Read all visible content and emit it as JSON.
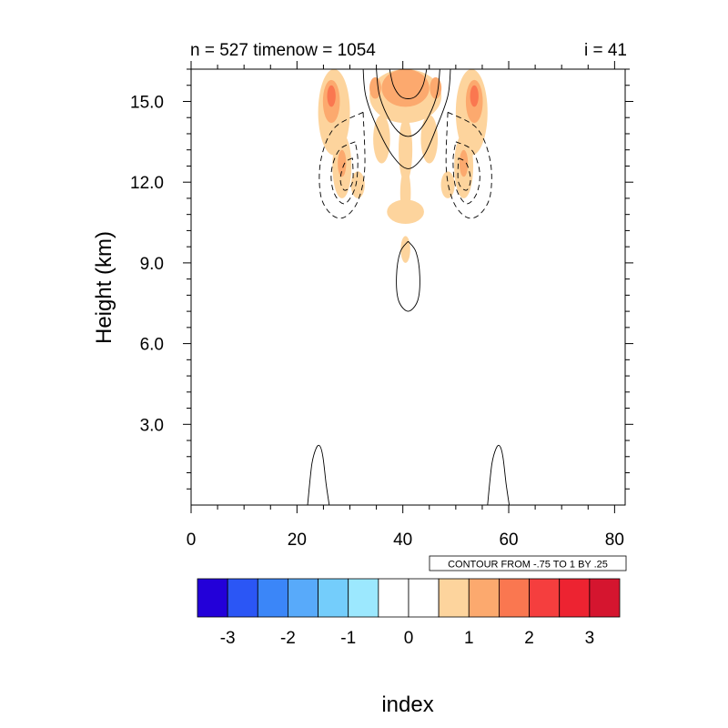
{
  "chart_data": {
    "type": "contour",
    "title_left": "n = 527 timenow = 1054",
    "title_right": "i = 41",
    "ylabel": "Height (km)",
    "xlabel": "",
    "xlim": [
      0,
      82
    ],
    "ylim": [
      0,
      16.2
    ],
    "xticks": [
      {
        "v": 0,
        "label": "0"
      },
      {
        "v": 20,
        "label": "20"
      },
      {
        "v": 40,
        "label": "40"
      },
      {
        "v": 60,
        "label": "60"
      },
      {
        "v": 80,
        "label": "80"
      }
    ],
    "yticks": [
      {
        "v": 3,
        "label": "3.0"
      },
      {
        "v": 6,
        "label": "6.0"
      },
      {
        "v": 9,
        "label": "9.0"
      },
      {
        "v": 12,
        "label": "12.0"
      },
      {
        "v": 15,
        "label": "15.0"
      }
    ],
    "contour_info": "CONTOUR FROM -.75 TO 1 BY .25",
    "colorbar": {
      "colors": [
        "#2300d9",
        "#2b56f5",
        "#3b86f8",
        "#58aafa",
        "#74cdfb",
        "#9ce8fe",
        "#ffffff",
        "#ffffff",
        "#fdd49d",
        "#fca96e",
        "#fa7750",
        "#f53e3e",
        "#ed2331",
        "#d5152f"
      ],
      "labels": [
        {
          "v": -3,
          "label": "-3"
        },
        {
          "v": -2,
          "label": "-2"
        },
        {
          "v": -1,
          "label": "-1"
        },
        {
          "v": 0,
          "label": "0"
        },
        {
          "v": 1,
          "label": "1"
        },
        {
          "v": 2,
          "label": "2"
        },
        {
          "v": 3,
          "label": "3"
        }
      ],
      "title": "index"
    },
    "filled_regions": [
      {
        "level": 1,
        "cx": 27,
        "cy": 14.6,
        "rx": 3.0,
        "ry": 1.6
      },
      {
        "level": 1,
        "cx": 53,
        "cy": 14.6,
        "rx": 3.0,
        "ry": 1.6
      },
      {
        "level": 2,
        "cx": 26.5,
        "cy": 15.0,
        "rx": 1.6,
        "ry": 0.8
      },
      {
        "level": 2,
        "cx": 53.5,
        "cy": 15.0,
        "rx": 1.6,
        "ry": 0.8
      },
      {
        "level": 3,
        "cx": 26.5,
        "cy": 15.2,
        "rx": 0.8,
        "ry": 0.4
      },
      {
        "level": 3,
        "cx": 53.5,
        "cy": 15.2,
        "rx": 0.8,
        "ry": 0.4
      },
      {
        "level": 1,
        "cx": 28.5,
        "cy": 12.6,
        "rx": 1.8,
        "ry": 1.2
      },
      {
        "level": 1,
        "cx": 51.5,
        "cy": 12.6,
        "rx": 1.8,
        "ry": 1.2
      },
      {
        "level": 2,
        "cx": 28.5,
        "cy": 12.7,
        "rx": 0.8,
        "ry": 0.5
      },
      {
        "level": 2,
        "cx": 51.5,
        "cy": 12.7,
        "rx": 0.8,
        "ry": 0.5
      },
      {
        "level": 1,
        "cx": 31.5,
        "cy": 11.9,
        "rx": 1.3,
        "ry": 0.5
      },
      {
        "level": 1,
        "cx": 48.5,
        "cy": 11.9,
        "rx": 1.3,
        "ry": 0.5
      },
      {
        "level": 1,
        "cx": 40.5,
        "cy": 15.2,
        "rx": 6.8,
        "ry": 1.0
      },
      {
        "level": 2,
        "cx": 40.5,
        "cy": 15.5,
        "rx": 4.5,
        "ry": 0.7
      },
      {
        "level": 2,
        "cx": 34.8,
        "cy": 15.5,
        "rx": 1.1,
        "ry": 0.4
      },
      {
        "level": 2,
        "cx": 46.2,
        "cy": 15.5,
        "rx": 1.1,
        "ry": 0.4
      },
      {
        "level": 1,
        "cx": 36.0,
        "cy": 13.6,
        "rx": 1.6,
        "ry": 0.9
      },
      {
        "level": 1,
        "cx": 45.0,
        "cy": 13.6,
        "rx": 1.6,
        "ry": 0.9
      },
      {
        "level": 1,
        "cx": 40.5,
        "cy": 13.2,
        "rx": 1.3,
        "ry": 1.2
      },
      {
        "level": 1,
        "cx": 40.5,
        "cy": 11.6,
        "rx": 1.0,
        "ry": 0.9
      },
      {
        "level": 1,
        "cx": 40.5,
        "cy": 10.9,
        "rx": 3.5,
        "ry": 0.45
      },
      {
        "level": 1,
        "cx": 40.5,
        "cy": 9.5,
        "rx": 0.9,
        "ry": 0.5
      }
    ],
    "contour_lines": [
      {
        "style": "solid",
        "points": [
          [
            32.5,
            16.2
          ],
          [
            33.0,
            15.2
          ],
          [
            35.0,
            14.1
          ],
          [
            38.0,
            13.0
          ],
          [
            41.0,
            12.5
          ],
          [
            44.0,
            13.0
          ],
          [
            46.5,
            14.1
          ],
          [
            48.5,
            15.2
          ],
          [
            49.0,
            16.2
          ]
        ]
      },
      {
        "style": "solid",
        "points": [
          [
            35.0,
            16.2
          ],
          [
            35.5,
            15.3
          ],
          [
            37.0,
            14.5
          ],
          [
            39.0,
            13.9
          ],
          [
            41.0,
            13.7
          ],
          [
            43.0,
            13.9
          ],
          [
            45.0,
            14.5
          ],
          [
            46.5,
            15.3
          ],
          [
            47.0,
            16.2
          ]
        ]
      },
      {
        "style": "solid",
        "points": [
          [
            37.5,
            16.2
          ],
          [
            38.2,
            15.6
          ],
          [
            39.5,
            15.2
          ],
          [
            41.0,
            15.1
          ],
          [
            42.5,
            15.2
          ],
          [
            43.8,
            15.6
          ],
          [
            44.5,
            16.2
          ]
        ]
      },
      {
        "style": "solid",
        "points": [
          [
            41.0,
            9.8
          ],
          [
            42.5,
            9.4
          ],
          [
            43.2,
            8.5
          ],
          [
            42.8,
            7.6
          ],
          [
            41.0,
            7.2
          ],
          [
            39.2,
            7.6
          ],
          [
            38.8,
            8.5
          ],
          [
            39.5,
            9.4
          ],
          [
            41.0,
            9.8
          ]
        ]
      },
      {
        "style": "solid",
        "points": [
          [
            22.0,
            0.0
          ],
          [
            22.8,
            1.5
          ],
          [
            23.6,
            2.1
          ],
          [
            24.3,
            2.2
          ],
          [
            24.9,
            1.8
          ],
          [
            25.5,
            0.8
          ],
          [
            26.1,
            0.0
          ]
        ]
      },
      {
        "style": "solid",
        "points": [
          [
            56.0,
            0.0
          ],
          [
            56.8,
            1.5
          ],
          [
            57.6,
            2.1
          ],
          [
            58.3,
            2.2
          ],
          [
            58.9,
            1.8
          ],
          [
            59.5,
            0.8
          ],
          [
            60.1,
            0.0
          ]
        ]
      },
      {
        "style": "dashed",
        "points": [
          [
            32.5,
            14.6
          ],
          [
            27.0,
            14.0
          ],
          [
            24.5,
            12.8
          ],
          [
            24.5,
            11.5
          ],
          [
            26.5,
            10.8
          ],
          [
            29.0,
            10.7
          ],
          [
            31.5,
            11.3
          ],
          [
            32.8,
            12.5
          ],
          [
            32.5,
            14.6
          ]
        ]
      },
      {
        "style": "dashed",
        "points": [
          [
            31.0,
            13.5
          ],
          [
            28.0,
            13.2
          ],
          [
            26.5,
            12.4
          ],
          [
            27.0,
            11.6
          ],
          [
            29.0,
            11.2
          ],
          [
            31.0,
            11.8
          ],
          [
            31.5,
            12.8
          ],
          [
            31.0,
            13.5
          ]
        ]
      },
      {
        "style": "dashed",
        "points": [
          [
            30.5,
            12.9
          ],
          [
            29.0,
            12.7
          ],
          [
            28.2,
            12.1
          ],
          [
            29.0,
            11.7
          ],
          [
            30.5,
            12.0
          ],
          [
            30.5,
            12.9
          ]
        ]
      },
      {
        "style": "dashed",
        "points": [
          [
            48.5,
            14.6
          ],
          [
            54.0,
            14.0
          ],
          [
            56.5,
            12.8
          ],
          [
            56.5,
            11.5
          ],
          [
            54.5,
            10.8
          ],
          [
            52.0,
            10.7
          ],
          [
            49.5,
            11.3
          ],
          [
            48.2,
            12.5
          ],
          [
            48.5,
            14.6
          ]
        ]
      },
      {
        "style": "dashed",
        "points": [
          [
            50.0,
            13.5
          ],
          [
            53.0,
            13.2
          ],
          [
            54.5,
            12.4
          ],
          [
            54.0,
            11.6
          ],
          [
            52.0,
            11.2
          ],
          [
            50.0,
            11.8
          ],
          [
            49.5,
            12.8
          ],
          [
            50.0,
            13.5
          ]
        ]
      },
      {
        "style": "dashed",
        "points": [
          [
            50.5,
            12.9
          ],
          [
            52.0,
            12.7
          ],
          [
            52.8,
            12.1
          ],
          [
            52.0,
            11.7
          ],
          [
            50.5,
            12.0
          ],
          [
            50.5,
            12.9
          ]
        ]
      }
    ]
  }
}
